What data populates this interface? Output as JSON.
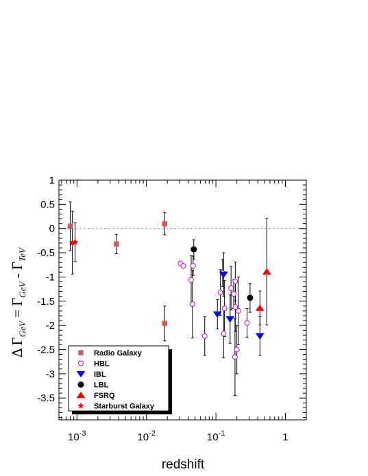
{
  "chart_data": {
    "type": "scatter",
    "title": "",
    "xlabel": "redshift",
    "ylabel": {
      "prefix": "Δ Γ",
      "sub1": "GeV",
      "mid": " = Γ",
      "sub2": "GeV",
      "mid2": " - Γ",
      "sub3": "TeV"
    },
    "x_scale": "log",
    "xlim": [
      0.00055,
      2.0
    ],
    "ylim": [
      -3.95,
      1.0
    ],
    "x_ticks": [
      {
        "value": 0.001,
        "base": "10",
        "exp": "-3"
      },
      {
        "value": 0.01,
        "base": "10",
        "exp": "-2"
      },
      {
        "value": 0.1,
        "base": "10",
        "exp": "-1"
      },
      {
        "value": 1,
        "label": "1"
      }
    ],
    "y_ticks": [
      {
        "value": 1,
        "label": "1"
      },
      {
        "value": 0.5,
        "label": "0.5"
      },
      {
        "value": 0,
        "label": "0"
      },
      {
        "value": -0.5,
        "label": "-0.5"
      },
      {
        "value": -1,
        "label": "-1"
      },
      {
        "value": -1.5,
        "label": "-1.5"
      },
      {
        "value": -2,
        "label": "-2"
      },
      {
        "value": -2.5,
        "label": "-2.5"
      },
      {
        "value": -3,
        "label": "-3"
      },
      {
        "value": -3.5,
        "label": "-3.5"
      }
    ],
    "reference_line": 0,
    "grid": false,
    "legend_position": "bottom-left",
    "series": [
      {
        "name": "Radio Galaxy",
        "marker": "square",
        "color": "#cd5c5c",
        "points": [
          {
            "x": 0.0008,
            "y": 0.05,
            "err": 0.5
          },
          {
            "x": 0.0037,
            "y": -0.32,
            "err": 0.2
          },
          {
            "x": 0.0183,
            "y": 0.1,
            "err": 0.23
          },
          {
            "x": 0.0183,
            "y": -1.96,
            "err": 0.36
          }
        ]
      },
      {
        "name": "HBL",
        "marker": "open-circle",
        "color": "#cc00cc",
        "points": [
          {
            "x": 0.031,
            "y": -0.72,
            "err": 0.04
          },
          {
            "x": 0.034,
            "y": -0.77,
            "err": 0.04
          },
          {
            "x": 0.044,
            "y": -1.06,
            "err": 0.5
          },
          {
            "x": 0.047,
            "y": -0.77,
            "err": 0.2
          },
          {
            "x": 0.046,
            "y": -1.56,
            "err": 0.7
          },
          {
            "x": 0.069,
            "y": -2.22,
            "err": 0.4
          },
          {
            "x": 0.116,
            "y": -1.32,
            "err": 0.47
          },
          {
            "x": 0.125,
            "y": -0.92,
            "err": 0.28
          },
          {
            "x": 0.129,
            "y": -2.17,
            "err": 0.5
          },
          {
            "x": 0.133,
            "y": -1.65,
            "err": 0.58
          },
          {
            "x": 0.165,
            "y": -1.23,
            "err": 0.45
          },
          {
            "x": 0.18,
            "y": -1.35,
            "err": 0.3
          },
          {
            "x": 0.19,
            "y": -1.09,
            "err": 0.4
          },
          {
            "x": 0.188,
            "y": -2.65,
            "err": 0.8
          },
          {
            "x": 0.19,
            "y": -1.62,
            "err": 0.5
          },
          {
            "x": 0.2,
            "y": -2.5,
            "err": 0.5
          },
          {
            "x": 0.21,
            "y": -1.7,
            "err": 0.7
          },
          {
            "x": 0.28,
            "y": -1.95,
            "err": 0.3
          }
        ]
      },
      {
        "name": "IBL",
        "marker": "triangle-down",
        "color": "#0000ff",
        "points": [
          {
            "x": 0.105,
            "y": -1.77,
            "err": 0.3
          },
          {
            "x": 0.129,
            "y": -0.95,
            "err": 0.45
          },
          {
            "x": 0.16,
            "y": -1.87,
            "err": 0.5
          },
          {
            "x": 0.43,
            "y": -2.22,
            "err": 0.4
          }
        ]
      },
      {
        "name": "LBL",
        "marker": "filled-circle",
        "color": "#000000",
        "points": [
          {
            "x": 0.048,
            "y": -0.43,
            "err": 0.2
          },
          {
            "x": 0.31,
            "y": -1.43,
            "err": 0.3
          }
        ]
      },
      {
        "name": "FSRQ",
        "marker": "triangle-up",
        "color": "#ff0000",
        "points": [
          {
            "x": 0.43,
            "y": -1.64,
            "err": 0.35
          },
          {
            "x": 0.54,
            "y": -0.89,
            "err": 1.1
          }
        ]
      },
      {
        "name": "Starburst Galaxy",
        "marker": "star",
        "color": "#ff0000",
        "points": [
          {
            "x": 0.00086,
            "y": -0.29,
            "err": 0.65
          },
          {
            "x": 0.00094,
            "y": -0.28,
            "err": 0.4
          }
        ]
      }
    ]
  }
}
